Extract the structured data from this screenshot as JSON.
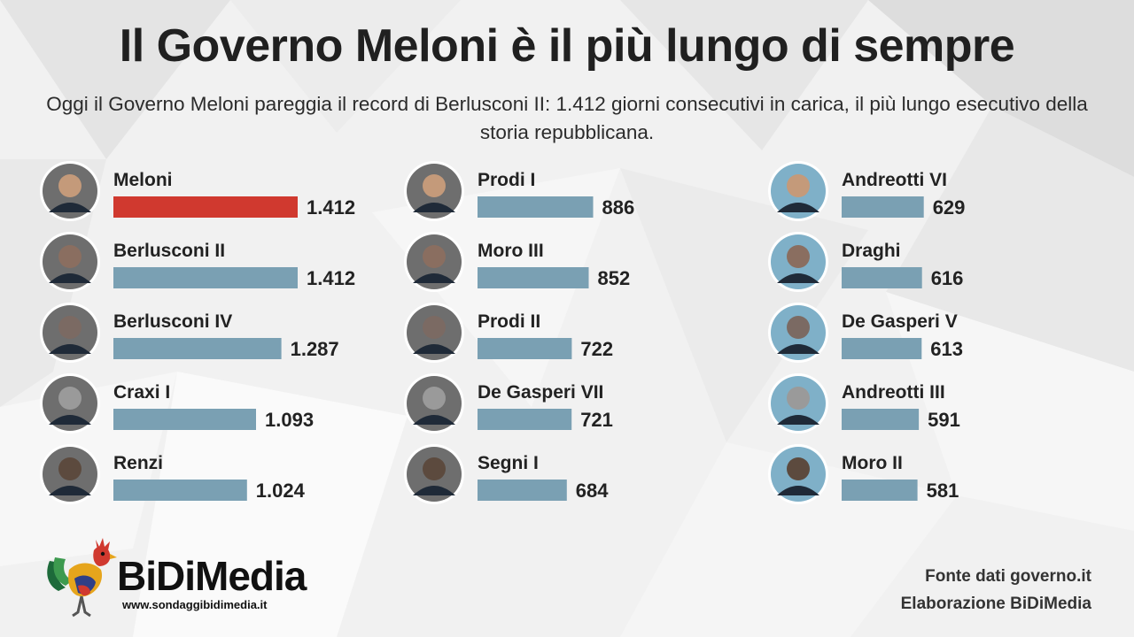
{
  "header": {
    "title": "Il Governo Meloni è il più lungo di sempre",
    "subtitle": "Oggi il Governo Meloni pareggia il record di Berlusconi II: 1.412 giorni consecutivi in carica, il più lungo esecutivo della storia repubblicana."
  },
  "chart_data": {
    "type": "bar",
    "orientation": "horizontal",
    "unit": "giorni",
    "highlight_color": "#d0392f",
    "bar_color": "#7aa0b3",
    "categories": [
      "Meloni",
      "Berlusconi II",
      "Berlusconi IV",
      "Craxi I",
      "Renzi",
      "Prodi I",
      "Moro III",
      "Prodi II",
      "De Gasperi VII",
      "Segni I",
      "Andreotti VI",
      "Draghi",
      "De Gasperi V",
      "Andreotti III",
      "Moro II"
    ],
    "values": [
      1412,
      1412,
      1287,
      1093,
      1024,
      886,
      852,
      722,
      721,
      684,
      629,
      616,
      613,
      591,
      581
    ],
    "value_labels": [
      "1.412",
      "1.412",
      "1.287",
      "1.093",
      "1.024",
      "886",
      "852",
      "722",
      "721",
      "684",
      "629",
      "616",
      "613",
      "591",
      "581"
    ],
    "highlighted": [
      "Meloni"
    ]
  },
  "logo": {
    "name": "BiDiMedia",
    "url": "www.sondaggibidimedia.it"
  },
  "footer": {
    "source": "Fonte dati governo.it",
    "credit": "Elaborazione BiDiMedia"
  }
}
